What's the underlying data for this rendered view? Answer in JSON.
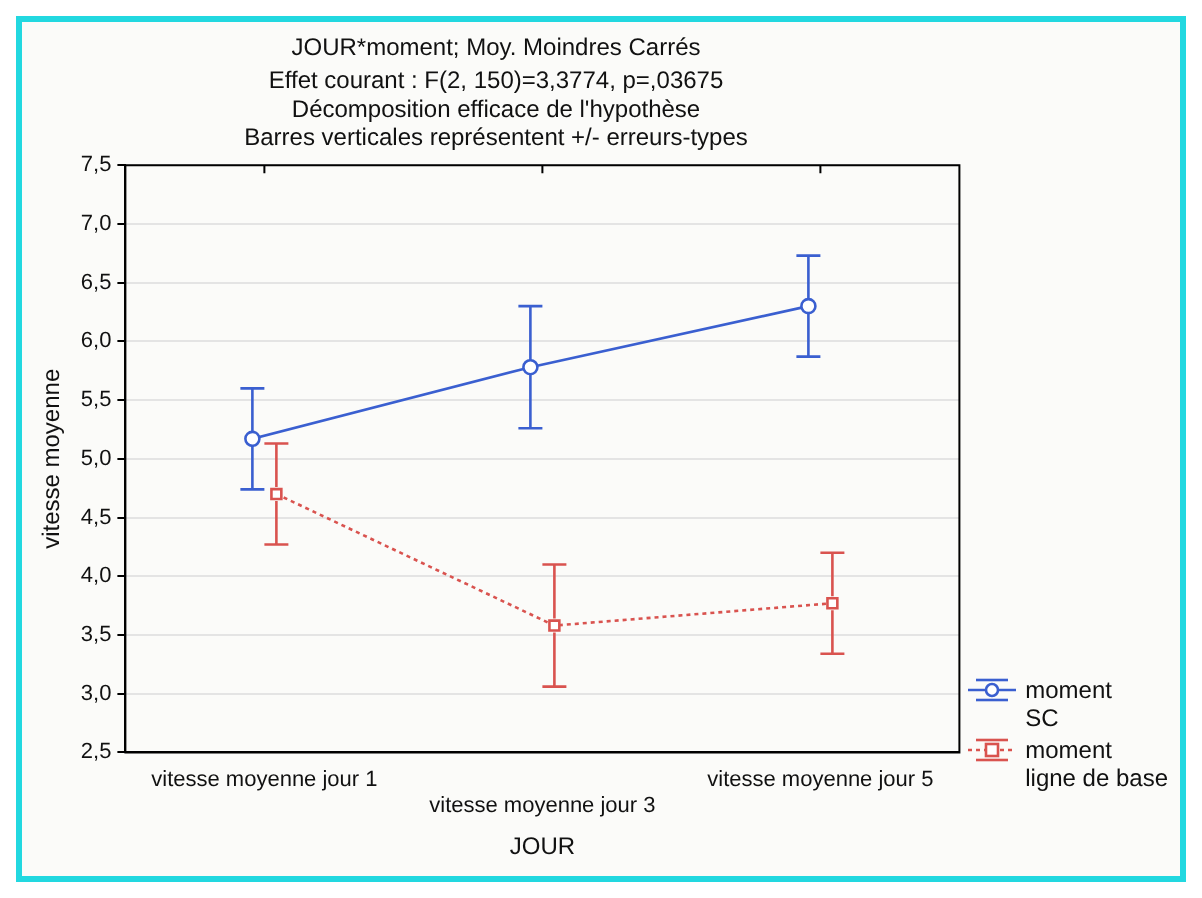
{
  "chart_data": {
    "type": "line",
    "title": "JOUR*moment; Moy. Moindres Carrés",
    "subtitle": "Effet courant : F(2, 150)=3,3774, p=,03675\nDécomposition efficace de l'hypothèse\nBarres verticales représentent +/- erreurs-types",
    "xlabel": "JOUR",
    "ylabel": "vitesse moyenne",
    "categories": [
      "vitesse moyenne jour 1",
      "vitesse moyenne jour 3",
      "vitesse moyenne jour 5"
    ],
    "series": [
      {
        "name": "moment SC",
        "color": "#3a5fd0",
        "values": [
          5.17,
          5.78,
          6.3
        ],
        "errors": [
          0.43,
          0.52,
          0.43
        ],
        "marker": "circle",
        "line_style": "solid"
      },
      {
        "name": "moment ligne de base",
        "color": "#d9534f",
        "values": [
          4.7,
          3.58,
          3.77
        ],
        "errors": [
          0.43,
          0.52,
          0.43
        ],
        "marker": "square",
        "line_style": "dotted"
      }
    ],
    "ylim": [
      2.5,
      7.5
    ],
    "yticks": [
      {
        "value": 2.5,
        "label": "2,5"
      },
      {
        "value": 3,
        "label": "3,0"
      },
      {
        "value": 3.5,
        "label": "3,5"
      },
      {
        "value": 4,
        "label": "4,0"
      },
      {
        "value": 4.5,
        "label": "4,5"
      },
      {
        "value": 5,
        "label": "5,0"
      },
      {
        "value": 5.5,
        "label": "5,5"
      },
      {
        "value": 6,
        "label": "6,0"
      },
      {
        "value": 6.5,
        "label": "6,5"
      },
      {
        "value": 7,
        "label": "7,0"
      },
      {
        "value": 7.5,
        "label": "7,5"
      }
    ],
    "grid": "y",
    "legend": "bottom right"
  }
}
